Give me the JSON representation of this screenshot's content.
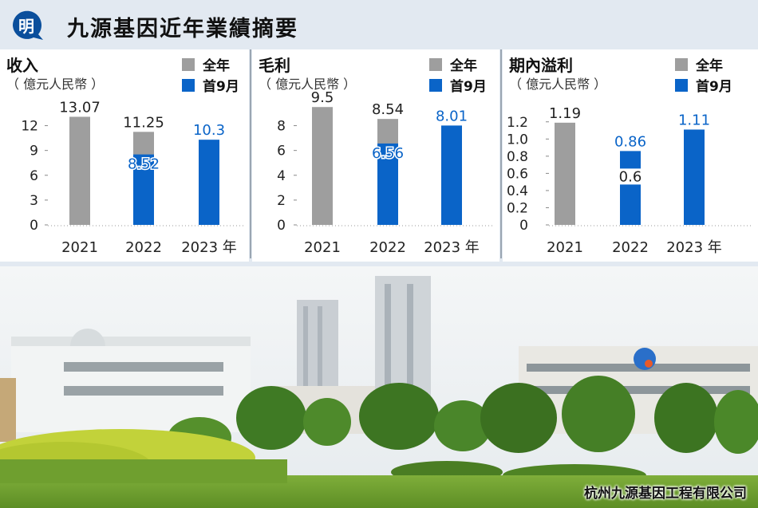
{
  "title": "九源基因近年業績摘要",
  "logo_text": "明",
  "legend": {
    "full_year": "全年",
    "nine_months": "首9月"
  },
  "colors": {
    "full_year": "#9e9e9e",
    "nine_months": "#0a64c8",
    "title_bg": "#e2e9f1"
  },
  "year_suffix": "年",
  "caption": "杭州九源基因工程有限公司",
  "chart_data": [
    {
      "type": "bar",
      "title": "收入",
      "ylabel": "（ 億元人民幣 ）",
      "categories": [
        "2021",
        "2022",
        "2023"
      ],
      "ylim": [
        0,
        13.5
      ],
      "yticks": [
        "0",
        "3",
        "6",
        "9",
        "12"
      ],
      "ytick_values": [
        0,
        3,
        6,
        9,
        12
      ],
      "series": [
        {
          "name": "全年",
          "values": [
            13.07,
            11.25,
            null
          ],
          "labels": [
            "13.07",
            "11.25",
            ""
          ]
        },
        {
          "name": "首9月",
          "values": [
            null,
            8.52,
            10.3
          ],
          "labels": [
            "",
            "8.52",
            "10.3"
          ]
        }
      ]
    },
    {
      "type": "bar",
      "title": "毛利",
      "ylabel": "（ 億元人民幣 ）",
      "categories": [
        "2021",
        "2022",
        "2023"
      ],
      "ylim": [
        0,
        9
      ],
      "yticks": [
        "0",
        "2",
        "4",
        "6",
        "8"
      ],
      "ytick_values": [
        0,
        2,
        4,
        6,
        8
      ],
      "series": [
        {
          "name": "全年",
          "values": [
            9.5,
            8.54,
            null
          ],
          "labels": [
            "9.5",
            "8.54",
            ""
          ]
        },
        {
          "name": "首9月",
          "values": [
            null,
            6.56,
            8.01
          ],
          "labels": [
            "",
            "6.56",
            "8.01"
          ]
        }
      ]
    },
    {
      "type": "bar",
      "title": "期內溢利",
      "ylabel": "（ 億元人民幣 ）",
      "categories": [
        "2021",
        "2022",
        "2023"
      ],
      "ylim": [
        0,
        1.3
      ],
      "yticks": [
        "0",
        "0.2",
        "0.4",
        "0.6",
        "0.8",
        "1.0",
        "1.2"
      ],
      "ytick_values": [
        0,
        0.2,
        0.4,
        0.6,
        0.8,
        1.0,
        1.2
      ],
      "series": [
        {
          "name": "全年",
          "values": [
            1.19,
            0.6,
            null
          ],
          "labels": [
            "1.19",
            "0.6",
            ""
          ]
        },
        {
          "name": "首9月",
          "values": [
            null,
            0.86,
            1.11
          ],
          "labels": [
            "",
            "0.86",
            "1.11"
          ]
        }
      ]
    }
  ]
}
